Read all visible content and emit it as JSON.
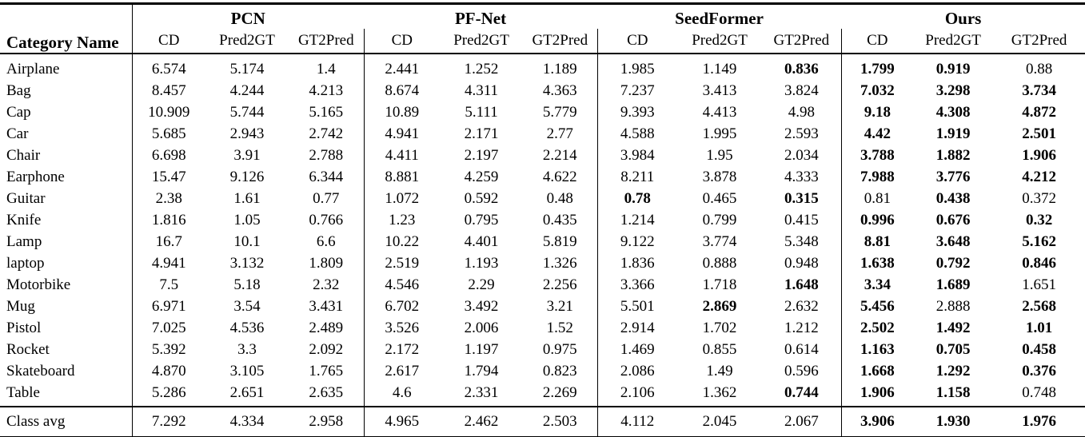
{
  "table": {
    "corner_header": "Category Name",
    "groups": [
      {
        "name": "PCN",
        "subcols": [
          "CD",
          "Pred2GT",
          "GT2Pred"
        ]
      },
      {
        "name": "PF-Net",
        "subcols": [
          "CD",
          "Pred2GT",
          "GT2Pred"
        ]
      },
      {
        "name": "SeedFormer",
        "subcols": [
          "CD",
          "Pred2GT",
          "GT2Pred"
        ]
      },
      {
        "name": "Ours",
        "subcols": [
          "CD",
          "Pred2GT",
          "GT2Pred"
        ]
      }
    ],
    "rows": [
      {
        "category": "Airplane",
        "values": [
          "6.574",
          "5.174",
          "1.4",
          "2.441",
          "1.252",
          "1.189",
          "1.985",
          "1.149",
          "0.836",
          "1.799",
          "0.919",
          "0.88"
        ],
        "bold": [
          8,
          9,
          10
        ]
      },
      {
        "category": "Bag",
        "values": [
          "8.457",
          "4.244",
          "4.213",
          "8.674",
          "4.311",
          "4.363",
          "7.237",
          "3.413",
          "3.824",
          "7.032",
          "3.298",
          "3.734"
        ],
        "bold": [
          9,
          10,
          11
        ]
      },
      {
        "category": "Cap",
        "values": [
          "10.909",
          "5.744",
          "5.165",
          "10.89",
          "5.111",
          "5.779",
          "9.393",
          "4.413",
          "4.98",
          "9.18",
          "4.308",
          "4.872"
        ],
        "bold": [
          9,
          10,
          11
        ]
      },
      {
        "category": "Car",
        "values": [
          "5.685",
          "2.943",
          "2.742",
          "4.941",
          "2.171",
          "2.77",
          "4.588",
          "1.995",
          "2.593",
          "4.42",
          "1.919",
          "2.501"
        ],
        "bold": [
          9,
          10,
          11
        ]
      },
      {
        "category": "Chair",
        "values": [
          "6.698",
          "3.91",
          "2.788",
          "4.411",
          "2.197",
          "2.214",
          "3.984",
          "1.95",
          "2.034",
          "3.788",
          "1.882",
          "1.906"
        ],
        "bold": [
          9,
          10,
          11
        ]
      },
      {
        "category": "Earphone",
        "values": [
          "15.47",
          "9.126",
          "6.344",
          "8.881",
          "4.259",
          "4.622",
          "8.211",
          "3.878",
          "4.333",
          "7.988",
          "3.776",
          "4.212"
        ],
        "bold": [
          9,
          10,
          11
        ]
      },
      {
        "category": "Guitar",
        "values": [
          "2.38",
          "1.61",
          "0.77",
          "1.072",
          "0.592",
          "0.48",
          "0.78",
          "0.465",
          "0.315",
          "0.81",
          "0.438",
          "0.372"
        ],
        "bold": [
          6,
          8,
          10
        ]
      },
      {
        "category": "Knife",
        "values": [
          "1.816",
          "1.05",
          "0.766",
          "1.23",
          "0.795",
          "0.435",
          "1.214",
          "0.799",
          "0.415",
          "0.996",
          "0.676",
          "0.32"
        ],
        "bold": [
          9,
          10,
          11
        ]
      },
      {
        "category": "Lamp",
        "values": [
          "16.7",
          "10.1",
          "6.6",
          "10.22",
          "4.401",
          "5.819",
          "9.122",
          "3.774",
          "5.348",
          "8.81",
          "3.648",
          "5.162"
        ],
        "bold": [
          9,
          10,
          11
        ]
      },
      {
        "category": "laptop",
        "values": [
          "4.941",
          "3.132",
          "1.809",
          "2.519",
          "1.193",
          "1.326",
          "1.836",
          "0.888",
          "0.948",
          "1.638",
          "0.792",
          "0.846"
        ],
        "bold": [
          9,
          10,
          11
        ]
      },
      {
        "category": "Motorbike",
        "values": [
          "7.5",
          "5.18",
          "2.32",
          "4.546",
          "2.29",
          "2.256",
          "3.366",
          "1.718",
          "1.648",
          "3.34",
          "1.689",
          "1.651"
        ],
        "bold": [
          8,
          9,
          10
        ]
      },
      {
        "category": "Mug",
        "values": [
          "6.971",
          "3.54",
          "3.431",
          "6.702",
          "3.492",
          "3.21",
          "5.501",
          "2.869",
          "2.632",
          "5.456",
          "2.888",
          "2.568"
        ],
        "bold": [
          7,
          9,
          11
        ]
      },
      {
        "category": "Pistol",
        "values": [
          "7.025",
          "4.536",
          "2.489",
          "3.526",
          "2.006",
          "1.52",
          "2.914",
          "1.702",
          "1.212",
          "2.502",
          "1.492",
          "1.01"
        ],
        "bold": [
          9,
          10,
          11
        ]
      },
      {
        "category": "Rocket",
        "values": [
          "5.392",
          "3.3",
          "2.092",
          "2.172",
          "1.197",
          "0.975",
          "1.469",
          "0.855",
          "0.614",
          "1.163",
          "0.705",
          "0.458"
        ],
        "bold": [
          9,
          10,
          11
        ]
      },
      {
        "category": "Skateboard",
        "values": [
          "4.870",
          "3.105",
          "1.765",
          "2.617",
          "1.794",
          "0.823",
          "2.086",
          "1.49",
          "0.596",
          "1.668",
          "1.292",
          "0.376"
        ],
        "bold": [
          9,
          10,
          11
        ]
      },
      {
        "category": "Table",
        "values": [
          "5.286",
          "2.651",
          "2.635",
          "4.6",
          "2.331",
          "2.269",
          "2.106",
          "1.362",
          "0.744",
          "1.906",
          "1.158",
          "0.748"
        ],
        "bold": [
          8,
          9,
          10
        ]
      }
    ],
    "footer": {
      "category": "Class avg",
      "values": [
        "7.292",
        "4.334",
        "2.958",
        "4.965",
        "2.462",
        "2.503",
        "4.112",
        "2.045",
        "2.067",
        "3.906",
        "1.930",
        "1.976"
      ],
      "bold": [
        9,
        10,
        11
      ]
    }
  }
}
